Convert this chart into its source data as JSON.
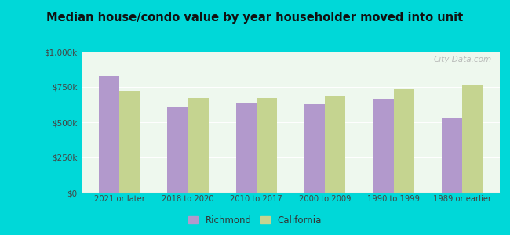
{
  "title": "Median house/condo value by year householder moved into unit",
  "categories": [
    "2021 or later",
    "2018 to 2020",
    "2010 to 2017",
    "2000 to 2009",
    "1990 to 1999",
    "1989 or earlier"
  ],
  "richmond_values": [
    830000,
    610000,
    640000,
    630000,
    665000,
    530000
  ],
  "california_values": [
    720000,
    670000,
    670000,
    690000,
    740000,
    760000
  ],
  "richmond_color": "#b299cc",
  "california_color": "#c5d490",
  "background_outer": "#00d8d8",
  "background_inner": "#eef8ee",
  "ylim": [
    0,
    1000000
  ],
  "yticks": [
    0,
    250000,
    500000,
    750000,
    1000000
  ],
  "legend_richmond": "Richmond",
  "legend_california": "California",
  "watermark": "City-Data.com"
}
